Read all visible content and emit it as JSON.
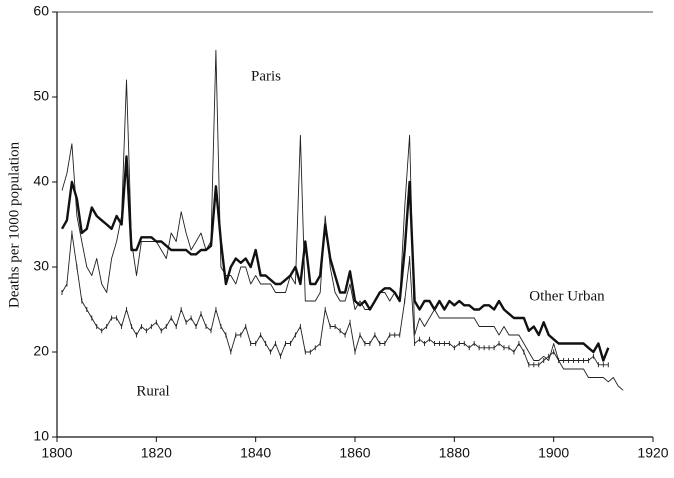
{
  "chart_data": {
    "type": "line",
    "y_label": "Deaths per 1000 population",
    "annotations": [
      "Paris",
      "Other Urban",
      "Rural"
    ],
    "x": [
      1801,
      1802,
      1803,
      1804,
      1805,
      1806,
      1807,
      1808,
      1809,
      1810,
      1811,
      1812,
      1813,
      1814,
      1815,
      1816,
      1817,
      1818,
      1819,
      1820,
      1821,
      1822,
      1823,
      1824,
      1825,
      1826,
      1827,
      1828,
      1829,
      1830,
      1831,
      1832,
      1833,
      1834,
      1835,
      1836,
      1837,
      1838,
      1839,
      1840,
      1841,
      1842,
      1843,
      1844,
      1845,
      1846,
      1847,
      1848,
      1849,
      1850,
      1851,
      1852,
      1853,
      1854,
      1855,
      1856,
      1857,
      1858,
      1859,
      1860,
      1861,
      1862,
      1863,
      1864,
      1865,
      1866,
      1867,
      1868,
      1869,
      1870,
      1871,
      1872,
      1873,
      1874,
      1875,
      1876,
      1877,
      1878,
      1879,
      1880,
      1881,
      1882,
      1883,
      1884,
      1885,
      1886,
      1887,
      1888,
      1889,
      1890,
      1891,
      1892,
      1893,
      1894,
      1895,
      1896,
      1897,
      1898,
      1899,
      1900,
      1901,
      1902,
      1903,
      1904,
      1905,
      1906,
      1907,
      1908,
      1909,
      1910,
      1911,
      1912,
      1913,
      1914
    ],
    "series": [
      {
        "name": "Paris",
        "color": "#222222",
        "width": 0.9,
        "tick_marks": false,
        "values": [
          39,
          41,
          44.5,
          36,
          33,
          30,
          29,
          31,
          28,
          27,
          31,
          33,
          36,
          52,
          33,
          29,
          33,
          33,
          33,
          33,
          32,
          31,
          34,
          33,
          36.5,
          34,
          32,
          33,
          34,
          32,
          33,
          55.5,
          30,
          29,
          29,
          28,
          30,
          30,
          28,
          29,
          28,
          28,
          28,
          27,
          27,
          27,
          29,
          28,
          45.5,
          26,
          26,
          26,
          27,
          36,
          30,
          27,
          26,
          26,
          28,
          25,
          26,
          25,
          25,
          26,
          27,
          27,
          26,
          27,
          26,
          37,
          45.5,
          22,
          24,
          23,
          24,
          25,
          24,
          24,
          24,
          24,
          24,
          24,
          24,
          24,
          23,
          23,
          23,
          23,
          22,
          23,
          22,
          22,
          22,
          21,
          20,
          19,
          19,
          19.5,
          19,
          21,
          19,
          18,
          18,
          18,
          18,
          18,
          17,
          17,
          17,
          17,
          16.5,
          17,
          16,
          15.5
        ]
      },
      {
        "name": "Other Urban",
        "color": "#111111",
        "width": 2.4,
        "tick_marks": false,
        "values": [
          34.5,
          35.5,
          40,
          38,
          34,
          34.5,
          37,
          36,
          35.5,
          35,
          34.5,
          36,
          35,
          43,
          32,
          32,
          33.5,
          33.5,
          33.5,
          33,
          33,
          32.5,
          32,
          32,
          32,
          32,
          31.5,
          31.5,
          32,
          32,
          32.5,
          39.5,
          33,
          28,
          30,
          31,
          30.5,
          31,
          30,
          32,
          29,
          29,
          28.5,
          28,
          28,
          28.5,
          29,
          30,
          28,
          33,
          28,
          28,
          29,
          35,
          31,
          29,
          27,
          27,
          29.5,
          26,
          25.5,
          26,
          25,
          26,
          27,
          27.5,
          27.5,
          27,
          26,
          32,
          40,
          26,
          25,
          26,
          26,
          25,
          26,
          25,
          26,
          25.5,
          26,
          25.5,
          25.5,
          25,
          25,
          25.5,
          25.5,
          25,
          26,
          25,
          24.5,
          24,
          24,
          24,
          22.5,
          23,
          22,
          23.5,
          22,
          21.5,
          21,
          21,
          21,
          21,
          21,
          21,
          20.5,
          20,
          21,
          19,
          20.5,
          null,
          null,
          null
        ]
      },
      {
        "name": "Rural",
        "color": "#222222",
        "width": 0.9,
        "tick_marks": true,
        "values": [
          27,
          28,
          34,
          30,
          26,
          25,
          24,
          23,
          22.5,
          23,
          24,
          24,
          23,
          25,
          23,
          22,
          23,
          22.5,
          23,
          23.5,
          22.5,
          23,
          24,
          23,
          25,
          23.5,
          24,
          23,
          24.5,
          23,
          22.5,
          25,
          23,
          22,
          20,
          22,
          22,
          23,
          21,
          21,
          22,
          21,
          20,
          21,
          19.5,
          21,
          21,
          22,
          23,
          20,
          20,
          20.5,
          21,
          25,
          23,
          23,
          22.5,
          22,
          23.5,
          20,
          22,
          21,
          21,
          22,
          21,
          21,
          22,
          22,
          22,
          26,
          31,
          21,
          21.5,
          21,
          21.5,
          21,
          21,
          21,
          21,
          20.5,
          21,
          21,
          20.5,
          21,
          20.5,
          20.5,
          20.5,
          20.5,
          21,
          20.5,
          20.5,
          20,
          21,
          20,
          18.5,
          18.5,
          18.5,
          19,
          19.5,
          20,
          19,
          19,
          19,
          19,
          19,
          19,
          19,
          19.5,
          18.5,
          18.5,
          18.5,
          null,
          null,
          null
        ]
      }
    ],
    "xlim": [
      1800,
      1920
    ],
    "xticks": [
      1800,
      1820,
      1840,
      1860,
      1880,
      1900,
      1920
    ],
    "ylim": [
      10,
      60
    ],
    "yticks": [
      10,
      20,
      30,
      40,
      50,
      60
    ]
  }
}
